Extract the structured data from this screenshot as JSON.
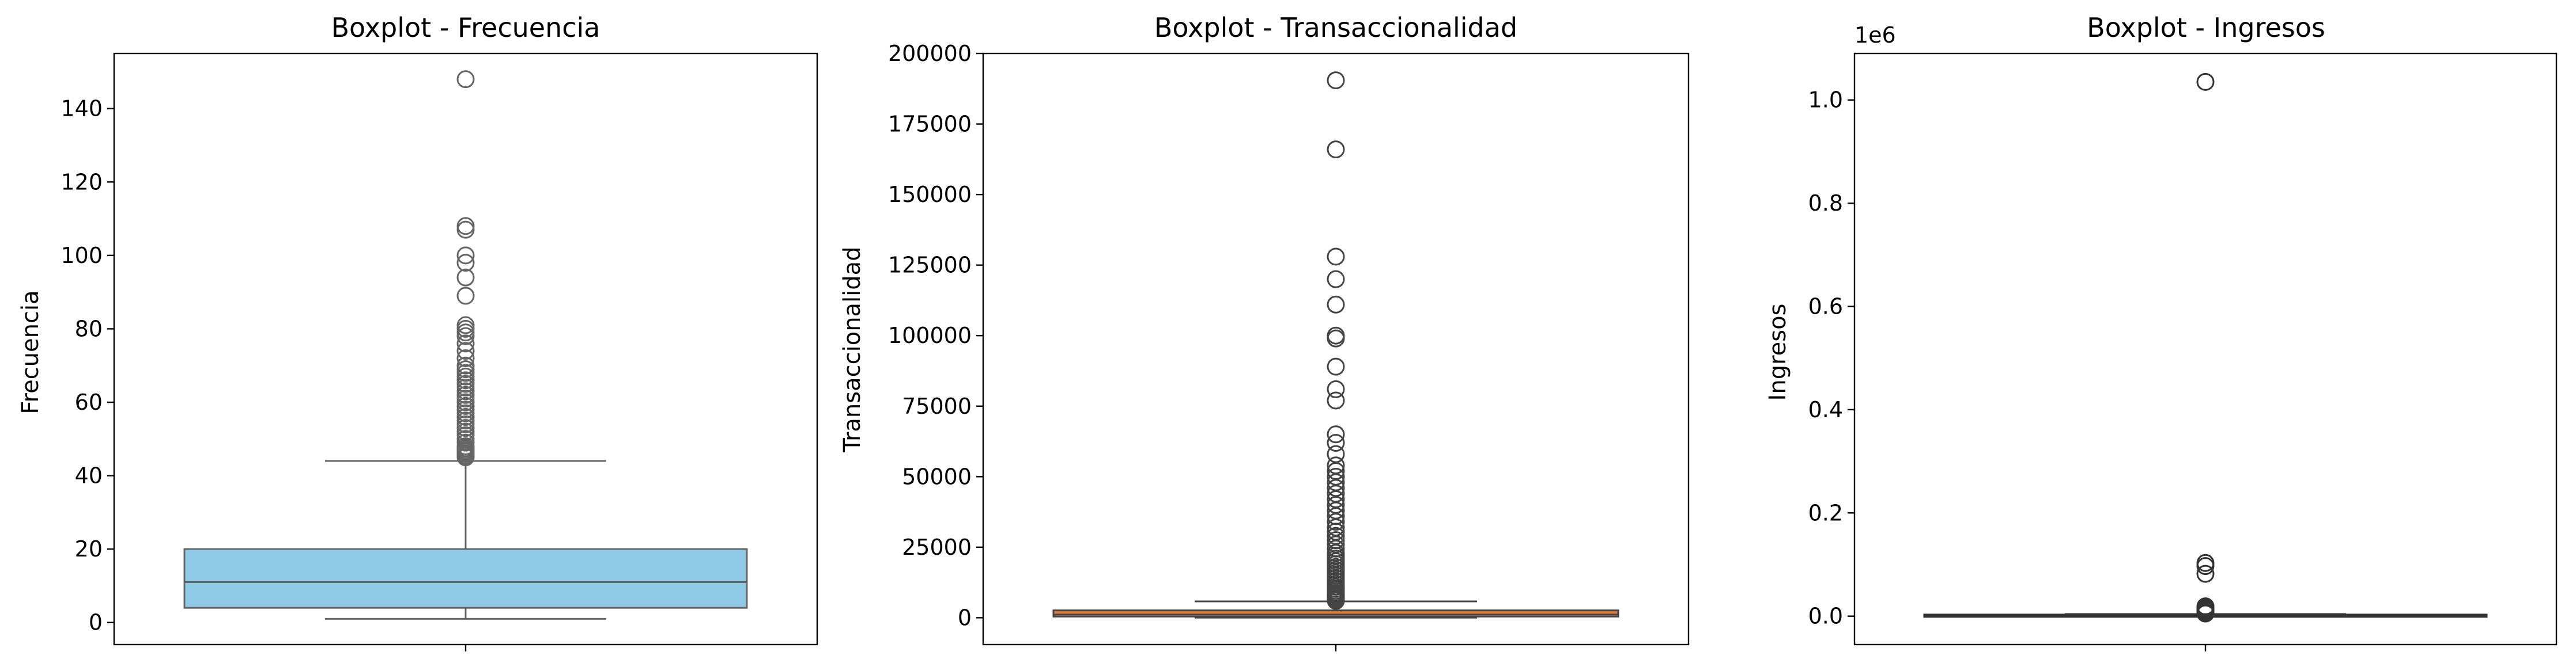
{
  "chart_data": [
    {
      "type": "boxplot",
      "title": "Boxplot - Frecuencia",
      "ylabel": "Frecuencia",
      "ylim": [
        -6,
        155
      ],
      "yticks": [
        0,
        20,
        40,
        60,
        80,
        100,
        120,
        140
      ],
      "ytick_labels": [
        "0",
        "20",
        "40",
        "60",
        "80",
        "100",
        "120",
        "140"
      ],
      "offset_label": "",
      "box_color": "#8ecae6",
      "edge_color": "#666666",
      "whisker_low": 1,
      "q1": 4,
      "median": 11,
      "q3": 20,
      "whisker_high": 44,
      "outliers": [
        45,
        45.5,
        46,
        46.5,
        47,
        47.5,
        48,
        49,
        50,
        51,
        52,
        53,
        54,
        55,
        56,
        57,
        58,
        59,
        60,
        61,
        62,
        63,
        64,
        65,
        66,
        67,
        68,
        69,
        70,
        72,
        74,
        76,
        78,
        79,
        80,
        81,
        89,
        94,
        98,
        100,
        107,
        108,
        148
      ]
    },
    {
      "type": "boxplot",
      "title": "Boxplot - Transaccionalidad",
      "ylabel": "Transaccionalidad",
      "ylim": [
        -9500,
        200000
      ],
      "yticks": [
        0,
        25000,
        50000,
        75000,
        100000,
        125000,
        150000,
        175000,
        200000
      ],
      "ytick_labels": [
        "0",
        "25000",
        "50000",
        "75000",
        "100000",
        "125000",
        "150000",
        "175000",
        "200000"
      ],
      "offset_label": "",
      "box_color": "#e07b39",
      "edge_color": "#444444",
      "whisker_low": 30,
      "q1": 400,
      "median": 1100,
      "q3": 2600,
      "whisker_high": 5800,
      "outliers": [
        6000,
        6400,
        6800,
        7200,
        7700,
        8200,
        8800,
        9500,
        10200,
        11000,
        12000,
        13000,
        14000,
        15000,
        16000,
        17000,
        18000,
        19000,
        20000,
        21000,
        22000,
        23000,
        24500,
        26000,
        27500,
        29000,
        30500,
        32000,
        34000,
        36000,
        38000,
        40000,
        42000,
        44000,
        46000,
        48000,
        50000,
        52000,
        54000,
        58000,
        62000,
        65000,
        77000,
        81000,
        89000,
        99000,
        100000,
        111000,
        120000,
        128000,
        166000,
        190500
      ]
    },
    {
      "type": "boxplot",
      "title": "Boxplot - Ingresos",
      "ylabel": "Ingresos",
      "ylim": [
        -55000,
        1090000
      ],
      "yticks": [
        0,
        200000,
        400000,
        600000,
        800000,
        1000000
      ],
      "ytick_labels": [
        "0.0",
        "0.2",
        "0.4",
        "0.6",
        "0.8",
        "1.0"
      ],
      "offset_label": "1e6",
      "box_color": "#4c72b0",
      "edge_color": "#333333",
      "whisker_low": 0,
      "q1": 100,
      "median": 500,
      "q3": 1500,
      "whisker_high": 4000,
      "outliers": [
        5000,
        7000,
        9000,
        11000,
        13000,
        15000,
        17000,
        19000,
        82000,
        97000,
        103000,
        1035000
      ]
    }
  ]
}
